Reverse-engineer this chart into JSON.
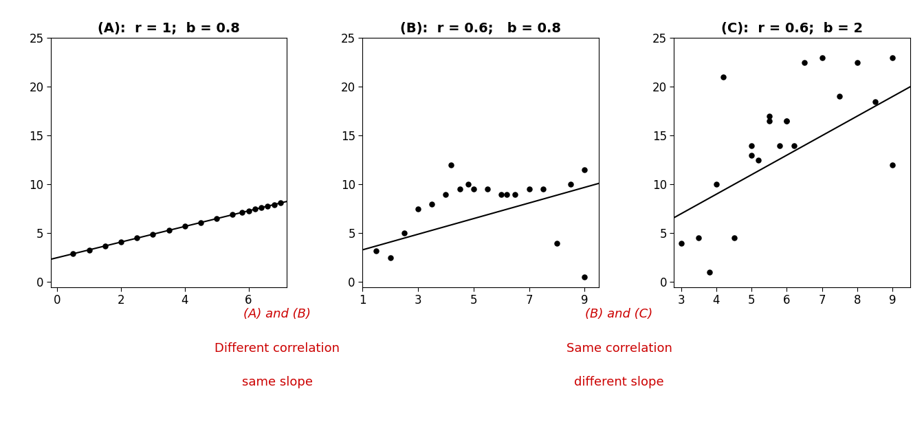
{
  "title_A": "(A):  r = 1;  b = 0.8",
  "title_B": "(B):  r = 0.6;   b = 0.8",
  "title_C": "(C):  r = 0.6;  b = 2",
  "annotation_color": "#cc0000",
  "background_color": "#ffffff",
  "ylim": [
    -0.5,
    25
  ],
  "A_xlim": [
    -0.2,
    7.2
  ],
  "B_xlim": [
    1.0,
    9.5
  ],
  "C_xlim": [
    2.8,
    9.5
  ],
  "A_xticks": [
    0,
    2,
    4,
    6
  ],
  "B_xticks": [
    1,
    3,
    5,
    7,
    9
  ],
  "C_xticks": [
    3,
    4,
    5,
    6,
    7,
    8,
    9
  ],
  "yticks": [
    0,
    5,
    10,
    15,
    20,
    25
  ],
  "A_slope": 0.8,
  "A_intercept": 2.5,
  "B_slope": 0.8,
  "B_intercept": 2.5,
  "C_slope": 2.0,
  "C_intercept": 1.0,
  "A_x": [
    0.5,
    1.0,
    1.5,
    2.0,
    2.5,
    3.0,
    3.5,
    4.0,
    4.5,
    5.0,
    5.5,
    5.8,
    6.0,
    6.2,
    6.4,
    6.6,
    6.8,
    7.0
  ],
  "B_x": [
    1.5,
    2.0,
    2.5,
    3.0,
    3.5,
    4.0,
    4.2,
    4.5,
    4.8,
    5.0,
    5.5,
    6.0,
    6.2,
    6.5,
    7.0,
    7.5,
    8.0,
    8.5,
    9.0,
    9.0
  ],
  "B_y": [
    3.2,
    2.5,
    5.0,
    7.5,
    8.0,
    9.0,
    12.0,
    9.5,
    10.0,
    9.5,
    9.5,
    9.0,
    9.0,
    9.0,
    9.5,
    9.5,
    4.0,
    10.0,
    11.5,
    0.5
  ],
  "C_x": [
    3.0,
    3.5,
    4.0,
    4.2,
    4.5,
    5.0,
    5.5,
    5.5,
    5.8,
    6.0,
    6.0,
    6.5,
    7.0,
    7.5,
    8.0,
    8.5,
    9.0,
    9.0,
    3.8,
    5.2,
    5.0,
    6.2
  ],
  "C_y": [
    4.0,
    4.5,
    10.0,
    21.0,
    4.5,
    13.0,
    16.5,
    17.0,
    14.0,
    16.5,
    16.5,
    22.5,
    23.0,
    19.0,
    22.5,
    18.5,
    12.0,
    23.0,
    1.0,
    12.5,
    14.0,
    14.0
  ],
  "point_size": 22,
  "point_color": "#000000",
  "line_color": "#000000",
  "line_width": 1.5,
  "title_fontsize": 14,
  "annotation_fontsize": 13,
  "tick_fontsize": 12
}
